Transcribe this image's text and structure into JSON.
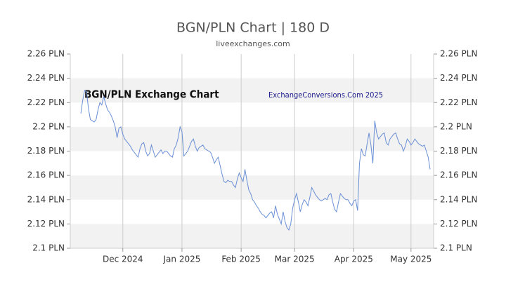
{
  "chart_data": {
    "type": "line",
    "title": "BGN/PLN Chart | 180 D",
    "subtitle": "liveexchanges.com",
    "annotations": [
      "BGN/PLN Exchange Chart",
      "ExchangeConversions.Com 2025"
    ],
    "categories": [
      null,
      null,
      null,
      null,
      null,
      null,
      null,
      null,
      null,
      null,
      null,
      null,
      null,
      null,
      null,
      null,
      null,
      null,
      null,
      null,
      null,
      null,
      "Dec 2024",
      null,
      null,
      null,
      null,
      null,
      null,
      null,
      null,
      null,
      null,
      null,
      null,
      null,
      null,
      null,
      null,
      null,
      null,
      null,
      null,
      null,
      null,
      null,
      null,
      null,
      null,
      null,
      null,
      null,
      null,
      "Jan 2025",
      null,
      null,
      null,
      null,
      null,
      null,
      null,
      null,
      null,
      null,
      null,
      null,
      null,
      null,
      null,
      null,
      null,
      null,
      null,
      null,
      null,
      null,
      null,
      null,
      null,
      null,
      null,
      null,
      null,
      null,
      "Feb 2025",
      null,
      null,
      null,
      null,
      null,
      null,
      null,
      null,
      null,
      null,
      null,
      null,
      null,
      null,
      null,
      null,
      null,
      null,
      null,
      null,
      null,
      null,
      null,
      null,
      null,
      null,
      null,
      "Mar 2025",
      null,
      null,
      null,
      null,
      null,
      null,
      null,
      null,
      null,
      null,
      null,
      null,
      null,
      null,
      null,
      null,
      null,
      null,
      null,
      null,
      null,
      null,
      null,
      null,
      null,
      null,
      null,
      null,
      null,
      null,
      "Apr 2025",
      null,
      null,
      null,
      null,
      null,
      null,
      null,
      null,
      null,
      null,
      null,
      null,
      null,
      null,
      null,
      null,
      null,
      null,
      null,
      null,
      null,
      null,
      null,
      null,
      null,
      null,
      null,
      null,
      null,
      "May 2025",
      null,
      null,
      null,
      null,
      null,
      null,
      null,
      null,
      null,
      null
    ],
    "series": [
      {
        "name": "BGN/PLN",
        "color": "#6a8fd6",
        "values": [
          2.211,
          2.222,
          2.23,
          2.229,
          2.215,
          2.206,
          2.205,
          2.204,
          2.206,
          2.214,
          2.22,
          2.218,
          2.225,
          2.219,
          2.214,
          2.212,
          2.209,
          2.205,
          2.2,
          2.191,
          2.199,
          2.2,
          2.194,
          2.19,
          2.188,
          2.186,
          2.184,
          2.181,
          2.179,
          2.177,
          2.175,
          2.182,
          2.186,
          2.187,
          2.18,
          2.176,
          2.178,
          2.185,
          2.18,
          2.175,
          2.177,
          2.179,
          2.181,
          2.178,
          2.18,
          2.18,
          2.178,
          2.176,
          2.175,
          2.182,
          2.185,
          2.191,
          2.2,
          2.196,
          2.176,
          2.178,
          2.18,
          2.184,
          2.188,
          2.19,
          2.184,
          2.18,
          2.183,
          2.184,
          2.185,
          2.182,
          2.181,
          2.18,
          2.179,
          2.175,
          2.17,
          2.173,
          2.175,
          2.168,
          2.161,
          2.155,
          2.154,
          2.156,
          2.155,
          2.155,
          2.152,
          2.15,
          2.157,
          2.162,
          2.158,
          2.155,
          2.165,
          2.156,
          2.148,
          2.145,
          2.14,
          2.138,
          2.135,
          2.133,
          2.13,
          2.128,
          2.127,
          2.125,
          2.127,
          2.129,
          2.13,
          2.125,
          2.135,
          2.128,
          2.124,
          2.12,
          2.13,
          2.122,
          2.117,
          2.115,
          2.12,
          2.133,
          2.14,
          2.145,
          2.138,
          2.13,
          2.136,
          2.14,
          2.138,
          2.135,
          2.142,
          2.15,
          2.147,
          2.144,
          2.142,
          2.14,
          2.139,
          2.14,
          2.141,
          2.14,
          2.144,
          2.145,
          2.138,
          2.132,
          2.13,
          2.138,
          2.145,
          2.143,
          2.141,
          2.14,
          2.14,
          2.137,
          2.135,
          2.139,
          2.14,
          2.131,
          2.17,
          2.182,
          2.177,
          2.176,
          2.186,
          2.195,
          2.185,
          2.17,
          2.205,
          2.195,
          2.19,
          2.192,
          2.194,
          2.195,
          2.187,
          2.185,
          2.19,
          2.192,
          2.194,
          2.195,
          2.19,
          2.186,
          2.185,
          2.18,
          2.184,
          2.19,
          2.188,
          2.185,
          2.187,
          2.19,
          2.188,
          2.186,
          2.185,
          2.184,
          2.185,
          2.18,
          2.175,
          2.165
        ]
      }
    ],
    "ylim": [
      2.1,
      2.26
    ],
    "yticks": [
      {
        "value": 2.1,
        "label": "2.1 PLN"
      },
      {
        "value": 2.12,
        "label": "2.12 PLN"
      },
      {
        "value": 2.14,
        "label": "2.14 PLN"
      },
      {
        "value": 2.16,
        "label": "2.16 PLN"
      },
      {
        "value": 2.18,
        "label": "2.18 PLN"
      },
      {
        "value": 2.2,
        "label": "2.2 PLN"
      },
      {
        "value": 2.22,
        "label": "2.22 PLN"
      },
      {
        "value": 2.24,
        "label": "2.24 PLN"
      },
      {
        "value": 2.26,
        "label": "2.26 PLN"
      }
    ],
    "grid": true
  }
}
